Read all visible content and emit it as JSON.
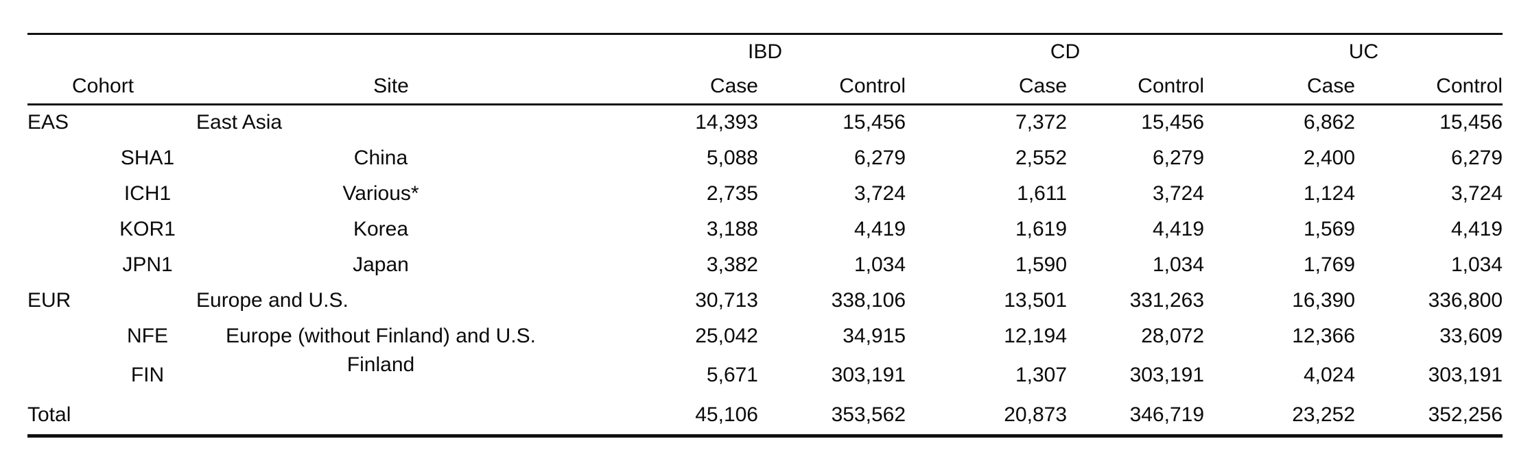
{
  "table": {
    "cohort_header": "Cohort",
    "site_header": "Site",
    "groups": [
      {
        "label": "IBD",
        "sub": [
          "Case",
          "Control"
        ]
      },
      {
        "label": "CD",
        "sub": [
          "Case",
          "Control"
        ]
      },
      {
        "label": "UC",
        "sub": [
          "Case",
          "Control"
        ]
      }
    ],
    "rows": [
      {
        "cohort": "EAS",
        "site": "East Asia",
        "level": "main",
        "site_raised": false,
        "values": [
          "14,393",
          "15,456",
          "7,372",
          "15,456",
          "6,862",
          "15,456"
        ]
      },
      {
        "cohort": "SHA1",
        "site": "China",
        "level": "sub",
        "site_raised": false,
        "values": [
          "5,088",
          "6,279",
          "2,552",
          "6,279",
          "2,400",
          "6,279"
        ]
      },
      {
        "cohort": "ICH1",
        "site": "Various*",
        "level": "sub",
        "site_raised": false,
        "values": [
          "2,735",
          "3,724",
          "1,611",
          "3,724",
          "1,124",
          "3,724"
        ]
      },
      {
        "cohort": "KOR1",
        "site": "Korea",
        "level": "sub",
        "site_raised": false,
        "values": [
          "3,188",
          "4,419",
          "1,619",
          "4,419",
          "1,569",
          "4,419"
        ]
      },
      {
        "cohort": "JPN1",
        "site": "Japan",
        "level": "sub",
        "site_raised": false,
        "values": [
          "3,382",
          "1,034",
          "1,590",
          "1,034",
          "1,769",
          "1,034"
        ]
      },
      {
        "cohort": "EUR",
        "site": "Europe and U.S.",
        "level": "main",
        "site_raised": false,
        "values": [
          "30,713",
          "338,106",
          "13,501",
          "331,263",
          "16,390",
          "336,800"
        ]
      },
      {
        "cohort": "NFE",
        "site": "Europe (without Finland) and U.S.",
        "level": "sub",
        "site_raised": false,
        "values": [
          "25,042",
          "34,915",
          "12,194",
          "28,072",
          "12,366",
          "33,609"
        ]
      },
      {
        "cohort": "FIN",
        "site": "Finland",
        "level": "sub",
        "site_raised": true,
        "values": [
          "5,671",
          "303,191",
          "1,307",
          "303,191",
          "4,024",
          "303,191"
        ]
      },
      {
        "cohort": "Total",
        "site": "",
        "level": "total",
        "site_raised": false,
        "values": [
          "45,106",
          "353,562",
          "20,873",
          "346,719",
          "23,252",
          "352,256"
        ]
      }
    ]
  }
}
